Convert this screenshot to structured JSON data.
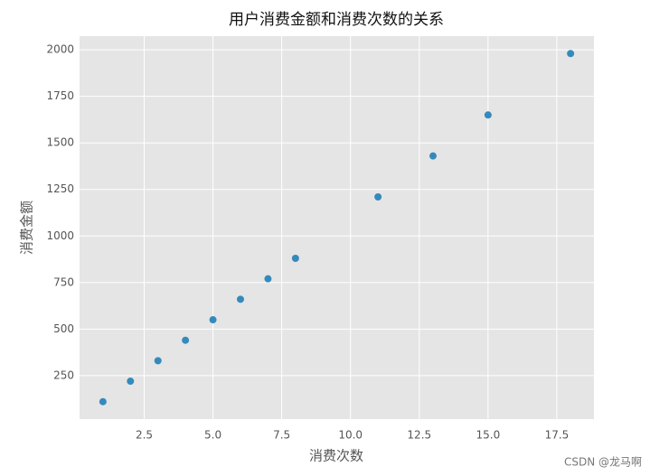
{
  "chart_data": {
    "type": "scatter",
    "title": "用户消费金额和消费次数的关系",
    "x_label": "消费次数",
    "y_label": "消费金额",
    "x": [
      1,
      2,
      3,
      4,
      5,
      6,
      7,
      8,
      11,
      13,
      15,
      18
    ],
    "values": [
      110,
      220,
      330,
      440,
      550,
      660,
      770,
      880,
      1210,
      1430,
      1650,
      1980
    ],
    "color": "#348abd",
    "xlim": [
      0.15,
      18.85
    ],
    "xticks": [
      2.5,
      {
        "value": 5,
        "label": "5.0"
      },
      7.5,
      {
        "value": 10,
        "label": "10.0"
      },
      12.5,
      {
        "value": 15,
        "label": "15.0"
      },
      17.5
    ],
    "ylim": [
      16.5,
      2073.5
    ],
    "yticks": [
      250,
      500,
      750,
      1000,
      1250,
      1500,
      1750,
      2000
    ],
    "grid": true,
    "watermark": "CSDN @龙马啊"
  }
}
